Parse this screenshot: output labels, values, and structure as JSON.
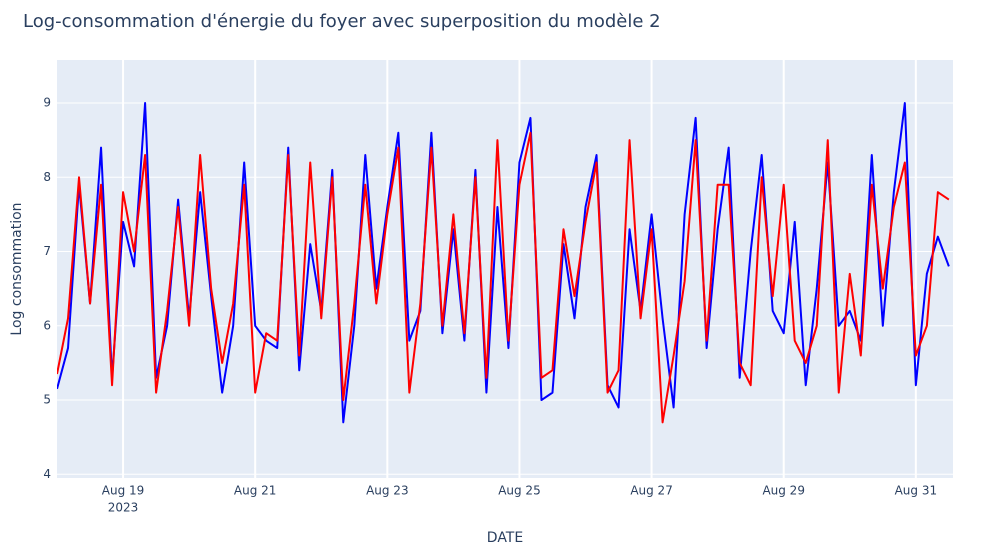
{
  "chart_data": {
    "type": "line",
    "title": "Log-consommation d'énergie du foyer avec superposition du modèle 2",
    "x_label": "DATE",
    "y_label": "Log consommation",
    "x": [
      "2023-08-18 00:00",
      "2023-08-18 04:00",
      "2023-08-18 08:00",
      "2023-08-18 12:00",
      "2023-08-18 16:00",
      "2023-08-18 20:00",
      "2023-08-19 00:00",
      "2023-08-19 04:00",
      "2023-08-19 08:00",
      "2023-08-19 12:00",
      "2023-08-19 16:00",
      "2023-08-19 20:00",
      "2023-08-20 00:00",
      "2023-08-20 04:00",
      "2023-08-20 08:00",
      "2023-08-20 12:00",
      "2023-08-20 16:00",
      "2023-08-20 20:00",
      "2023-08-21 00:00",
      "2023-08-21 04:00",
      "2023-08-21 08:00",
      "2023-08-21 12:00",
      "2023-08-21 16:00",
      "2023-08-21 20:00",
      "2023-08-22 00:00",
      "2023-08-22 04:00",
      "2023-08-22 08:00",
      "2023-08-22 12:00",
      "2023-08-22 16:00",
      "2023-08-22 20:00",
      "2023-08-23 00:00",
      "2023-08-23 04:00",
      "2023-08-23 08:00",
      "2023-08-23 12:00",
      "2023-08-23 16:00",
      "2023-08-23 20:00",
      "2023-08-24 00:00",
      "2023-08-24 04:00",
      "2023-08-24 08:00",
      "2023-08-24 12:00",
      "2023-08-24 16:00",
      "2023-08-24 20:00",
      "2023-08-25 00:00",
      "2023-08-25 04:00",
      "2023-08-25 08:00",
      "2023-08-25 12:00",
      "2023-08-25 16:00",
      "2023-08-25 20:00",
      "2023-08-26 00:00",
      "2023-08-26 04:00",
      "2023-08-26 08:00",
      "2023-08-26 12:00",
      "2023-08-26 16:00",
      "2023-08-26 20:00",
      "2023-08-27 00:00",
      "2023-08-27 04:00",
      "2023-08-27 08:00",
      "2023-08-27 12:00",
      "2023-08-27 16:00",
      "2023-08-27 20:00",
      "2023-08-28 00:00",
      "2023-08-28 04:00",
      "2023-08-28 08:00",
      "2023-08-28 12:00",
      "2023-08-28 16:00",
      "2023-08-28 20:00",
      "2023-08-29 00:00",
      "2023-08-29 04:00",
      "2023-08-29 08:00",
      "2023-08-29 12:00",
      "2023-08-29 16:00",
      "2023-08-29 20:00",
      "2023-08-30 00:00",
      "2023-08-30 04:00",
      "2023-08-30 08:00",
      "2023-08-30 12:00",
      "2023-08-30 16:00",
      "2023-08-30 20:00",
      "2023-08-31 00:00",
      "2023-08-31 04:00",
      "2023-08-31 08:00",
      "2023-08-31 12:00"
    ],
    "series": [
      {
        "color": "#0000ff",
        "values": [
          5.15,
          5.7,
          7.9,
          6.3,
          8.4,
          5.3,
          7.4,
          6.8,
          9.0,
          5.3,
          6.0,
          7.7,
          6.1,
          7.8,
          6.4,
          5.1,
          6.0,
          8.2,
          6.0,
          5.8,
          5.7,
          8.4,
          5.4,
          7.1,
          6.2,
          8.1,
          4.7,
          6.0,
          8.3,
          6.5,
          7.6,
          8.6,
          5.8,
          6.2,
          8.6,
          5.9,
          7.3,
          5.8,
          8.1,
          5.1,
          7.6,
          5.7,
          8.2,
          8.8,
          5.0,
          5.1,
          7.1,
          6.1,
          7.6,
          8.3,
          5.2,
          4.9,
          7.3,
          6.2,
          7.5,
          6.1,
          4.9,
          7.5,
          8.8,
          5.7,
          7.3,
          8.4,
          5.3,
          7.0,
          8.3,
          6.2,
          5.9,
          7.4,
          5.2,
          6.5,
          8.2,
          6.0,
          6.2,
          5.8,
          8.3,
          6.0,
          7.8,
          9.0,
          5.2,
          6.7,
          7.2,
          6.8
        ]
      },
      {
        "color": "#ff0000",
        "values": [
          5.35,
          6.1,
          8.0,
          6.3,
          7.9,
          5.2,
          7.8,
          7.0,
          8.3,
          5.1,
          6.2,
          7.6,
          6.0,
          8.3,
          6.5,
          5.5,
          6.3,
          7.9,
          5.1,
          5.9,
          5.8,
          8.3,
          5.6,
          8.2,
          6.1,
          8.0,
          5.0,
          6.3,
          7.9,
          6.3,
          7.5,
          8.4,
          5.1,
          6.3,
          8.4,
          6.0,
          7.5,
          5.9,
          8.0,
          5.3,
          8.5,
          5.8,
          7.9,
          8.6,
          5.3,
          5.4,
          7.3,
          6.4,
          7.4,
          8.2,
          5.1,
          5.4,
          8.5,
          6.1,
          7.3,
          4.7,
          5.6,
          6.6,
          8.5,
          5.8,
          7.9,
          7.9,
          5.5,
          5.2,
          8.0,
          6.4,
          7.9,
          5.8,
          5.5,
          6.0,
          8.5,
          5.1,
          6.7,
          5.6,
          7.9,
          6.5,
          7.6,
          8.2,
          5.6,
          6.0,
          7.8,
          7.7
        ]
      }
    ],
    "xlim": [
      "2023-08-18 00:00",
      "2023-08-31 13:30"
    ],
    "xticks": [
      {
        "value": "2023-08-19 00:00",
        "label": "Aug 19",
        "year": "2023"
      },
      {
        "value": "2023-08-21 00:00",
        "label": "Aug 21"
      },
      {
        "value": "2023-08-23 00:00",
        "label": "Aug 23"
      },
      {
        "value": "2023-08-25 00:00",
        "label": "Aug 25"
      },
      {
        "value": "2023-08-27 00:00",
        "label": "Aug 27"
      },
      {
        "value": "2023-08-29 00:00",
        "label": "Aug 29"
      },
      {
        "value": "2023-08-31 00:00",
        "label": "Aug 31"
      }
    ],
    "ylim": [
      3.95,
      9.58
    ],
    "yticks": [
      4,
      5,
      6,
      7,
      8,
      9
    ],
    "grid": true,
    "background": "#e5ecf6"
  }
}
